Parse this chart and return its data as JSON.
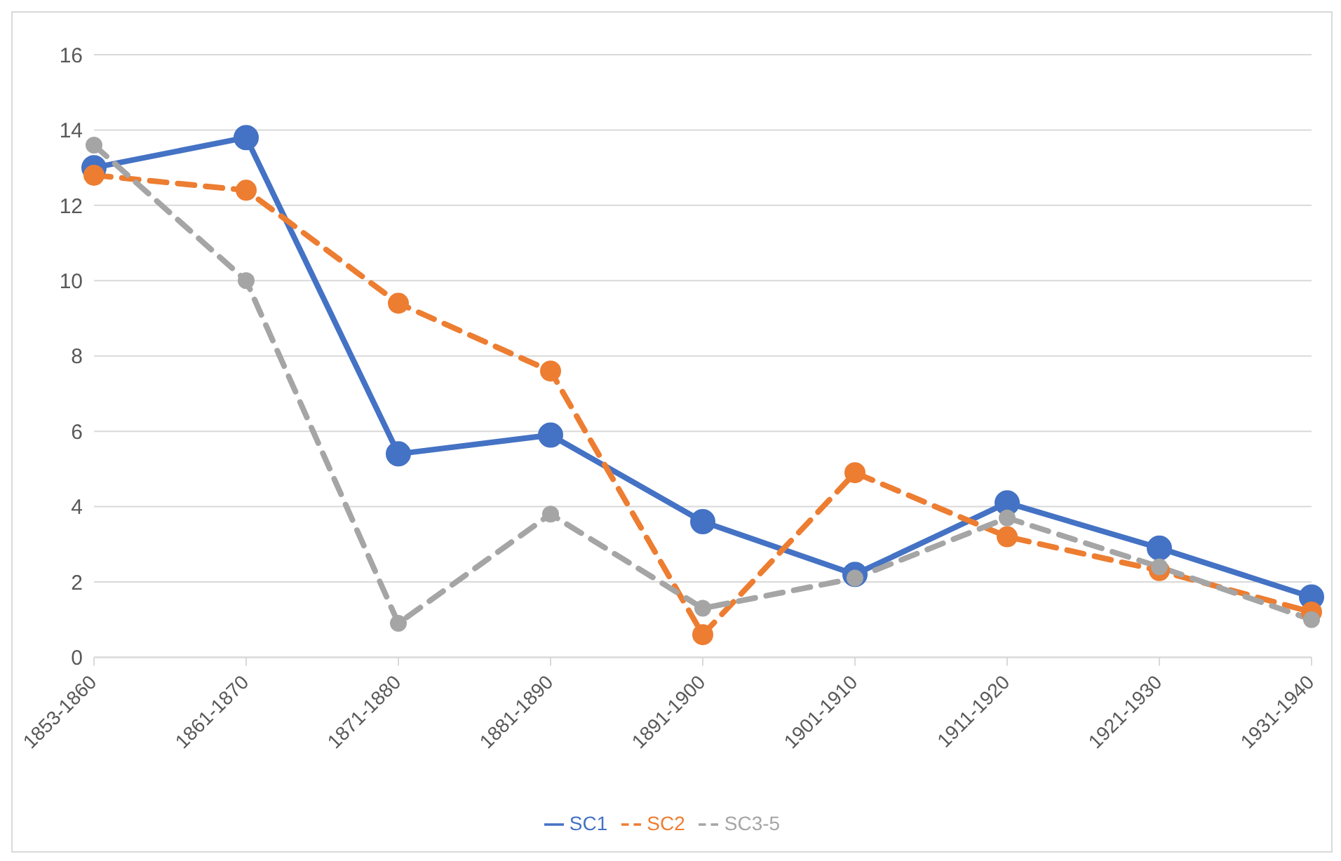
{
  "chart_data": {
    "type": "line",
    "categories": [
      "1853-1860",
      "1861-1870",
      "1871-1880",
      "1881-1890",
      "1891-1900",
      "1901-1910",
      "1911-1920",
      "1921-1930",
      "1931-1940"
    ],
    "series": [
      {
        "name": "SC1",
        "color": "#4472c4",
        "line_style": "solid",
        "values": [
          13.0,
          13.8,
          5.4,
          5.9,
          3.6,
          2.2,
          4.1,
          2.9,
          1.6
        ]
      },
      {
        "name": "SC2",
        "color": "#ed7d31",
        "line_style": "dashed",
        "values": [
          12.8,
          12.4,
          9.4,
          7.6,
          0.6,
          4.9,
          3.2,
          2.3,
          1.2
        ]
      },
      {
        "name": "SC3-5",
        "color": "#a5a5a5",
        "line_style": "dashed",
        "values": [
          13.6,
          10.0,
          0.9,
          3.8,
          1.3,
          2.1,
          3.7,
          2.4,
          1.0
        ]
      }
    ],
    "ylim": [
      0,
      16
    ],
    "yticks": [
      0,
      2,
      4,
      6,
      8,
      10,
      12,
      14,
      16
    ],
    "grid": "y",
    "legend": "bottom",
    "marker": "circle"
  }
}
